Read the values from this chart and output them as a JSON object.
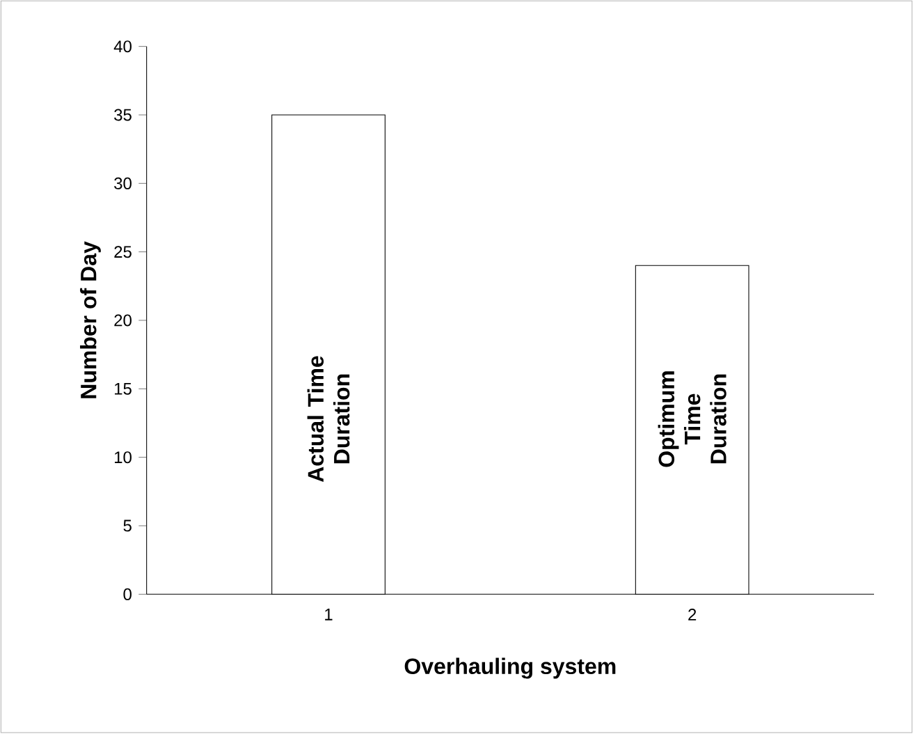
{
  "chart_data": {
    "type": "bar",
    "xlabel": "Overhauling system",
    "ylabel": "Number of Day",
    "categories": [
      "1",
      "2"
    ],
    "values": [
      35,
      24
    ],
    "color": "#ffffff",
    "ylim": [
      0,
      40
    ],
    "yticks": [
      0,
      5,
      10,
      15,
      20,
      25,
      30,
      35,
      40
    ],
    "grid": false,
    "annotations": [
      "Actual Time Duration",
      "Optimum Time Duration"
    ]
  }
}
